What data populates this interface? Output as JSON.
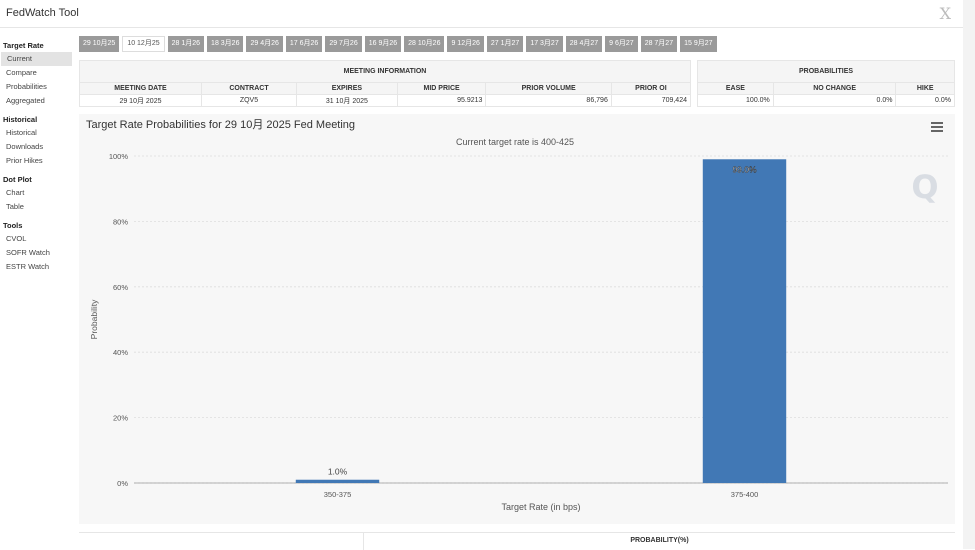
{
  "app": {
    "title": "FedWatch Tool",
    "close_glyph": "X"
  },
  "sidebar": {
    "sections": [
      {
        "title": "Target Rate",
        "items": [
          "Current",
          "Compare",
          "Probabilities",
          "Aggregated"
        ]
      },
      {
        "title": "Historical",
        "items": [
          "Historical",
          "Downloads",
          "Prior Hikes"
        ]
      },
      {
        "title": "Dot Plot",
        "items": [
          "Chart",
          "Table"
        ]
      },
      {
        "title": "Tools",
        "items": [
          "CVOL",
          "SOFR Watch",
          "ESTR Watch"
        ]
      }
    ],
    "active_item": "Current"
  },
  "tabs": [
    "29 10月25",
    "10 12月25",
    "28 1月26",
    "18 3月26",
    "29 4月26",
    "17 6月26",
    "29 7月26",
    "16 9月26",
    "28 10月26",
    "9 12月26",
    "27 1月27",
    "17 3月27",
    "28 4月27",
    "9 6月27",
    "28 7月27",
    "15 9月27"
  ],
  "active_tab": "10 12月25",
  "meeting_info": {
    "header": "MEETING INFORMATION",
    "columns": [
      "MEETING DATE",
      "CONTRACT",
      "EXPIRES",
      "MID PRICE",
      "PRIOR VOLUME",
      "PRIOR OI"
    ],
    "row": [
      "29 10月 2025",
      "ZQV5",
      "31 10月 2025",
      "95.9213",
      "86,796",
      "709,424"
    ]
  },
  "probabilities": {
    "header": "PROBABILITIES",
    "columns": [
      "EASE",
      "NO CHANGE",
      "HIKE"
    ],
    "row": [
      "100.0%",
      "0.0%",
      "0.0%"
    ]
  },
  "chart": {
    "title": "Target Rate Probabilities for 29 10月 2025 Fed Meeting",
    "subtitle": "Current target rate is 400-425",
    "menu_icon": "hamburger-menu-icon",
    "watermark": "Q"
  },
  "chart_data": {
    "type": "bar",
    "title": "Target Rate Probabilities for 29 10月 2025 Fed Meeting",
    "subtitle": "Current target rate is 400-425",
    "categories": [
      "350-375",
      "375-400"
    ],
    "values": [
      1.0,
      99.0
    ],
    "data_labels": [
      "1.0%",
      "99.0%"
    ],
    "xlabel": "Target Rate (in bps)",
    "ylabel": "Probability",
    "ylim": [
      0,
      100
    ],
    "yticks": [
      "0%",
      "20%",
      "40%",
      "60%",
      "80%",
      "100%"
    ],
    "bar_color": "#4178b5",
    "grid": true
  },
  "bottom_table": {
    "header": "PROBABILITY(%)"
  }
}
